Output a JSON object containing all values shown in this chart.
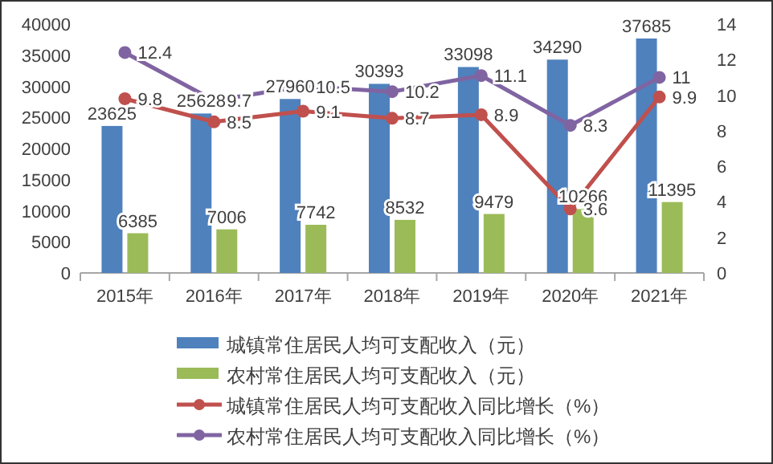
{
  "chart_data": {
    "type": "bar",
    "categories": [
      "2015年",
      "2016年",
      "2017年",
      "2018年",
      "2019年",
      "2020年",
      "2021年"
    ],
    "series": [
      {
        "name": "城镇常住居民人均可支配收入（元）",
        "color": "#4f81bd",
        "values": [
          23625,
          25628,
          27960,
          30393,
          33098,
          34290,
          37685
        ]
      },
      {
        "name": "农村常住居民人均可支配收入（元）",
        "color": "#9bbb59",
        "values": [
          6385,
          7006,
          7742,
          8532,
          9479,
          10266,
          11395
        ]
      },
      {
        "name": "城镇常住居民人均可支配收入同比增长（%）",
        "type": "line",
        "axis": "y2",
        "color": "#c0504d",
        "values": [
          9.8,
          8.5,
          9.1,
          8.7,
          8.9,
          3.6,
          9.9
        ]
      },
      {
        "name": "农村常住居民人均可支配收入同比增长（%）",
        "type": "line",
        "axis": "y2",
        "color": "#8064a2",
        "values": [
          12.4,
          9.7,
          10.5,
          10.2,
          11.1,
          8.3,
          11
        ]
      }
    ],
    "ylim": [
      0,
      40000
    ],
    "yticks": [
      0,
      5000,
      10000,
      15000,
      20000,
      25000,
      30000,
      35000,
      40000
    ],
    "y2lim": [
      0,
      14
    ],
    "y2ticks": [
      0,
      2,
      4,
      6,
      8,
      10,
      12,
      14
    ],
    "marker": "circle",
    "data_labels": true,
    "legend": "bottom",
    "grid": false
  }
}
